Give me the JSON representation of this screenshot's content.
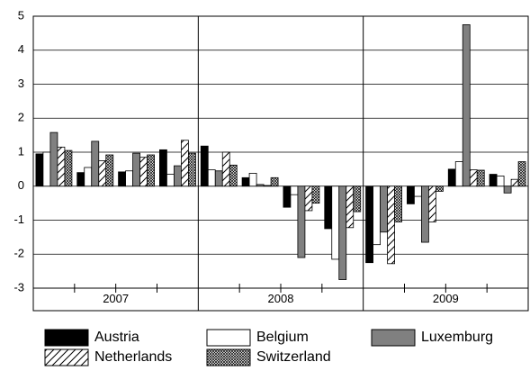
{
  "chart_data": {
    "type": "bar",
    "categories": [
      null,
      null,
      null,
      null,
      null,
      null,
      null,
      null,
      null,
      null,
      null,
      null
    ],
    "groups": [
      "2007",
      "2008",
      "2009"
    ],
    "series": [
      {
        "name": "Austria",
        "color": "#000000",
        "pattern": "solid",
        "values": [
          0.95,
          0.4,
          0.42,
          1.07,
          1.18,
          0.25,
          -0.62,
          -1.25,
          -2.25,
          -0.52,
          0.5,
          0.35
        ]
      },
      {
        "name": "Belgium",
        "color": "#ffffff",
        "pattern": "solid",
        "values": [
          1.0,
          0.55,
          0.45,
          0.35,
          0.48,
          0.38,
          -0.25,
          -2.15,
          -1.72,
          -0.3,
          0.72,
          0.3
        ]
      },
      {
        "name": "Luxemburg",
        "color": "#808080",
        "pattern": "solid",
        "values": [
          1.58,
          1.32,
          0.97,
          0.6,
          0.45,
          0.05,
          -2.1,
          -2.75,
          -1.35,
          -1.65,
          4.75,
          -0.2
        ]
      },
      {
        "name": "Netherlands",
        "color": "#ffffff",
        "pattern": "diagonal",
        "values": [
          1.15,
          0.75,
          0.85,
          1.35,
          1.0,
          0.02,
          -0.72,
          -1.22,
          -2.28,
          -1.05,
          0.48,
          0.2
        ]
      },
      {
        "name": "Switzerland",
        "color": "#ffffff",
        "pattern": "crosshatch",
        "values": [
          1.05,
          0.92,
          0.92,
          0.97,
          0.62,
          0.25,
          -0.5,
          -0.75,
          -1.05,
          -0.15,
          0.47,
          0.72
        ]
      }
    ],
    "ylim": [
      -3,
      5
    ],
    "yticks": [
      -3,
      -2,
      -1,
      0,
      1,
      2,
      3,
      4,
      5
    ],
    "grid": true,
    "legend": "bottom"
  }
}
